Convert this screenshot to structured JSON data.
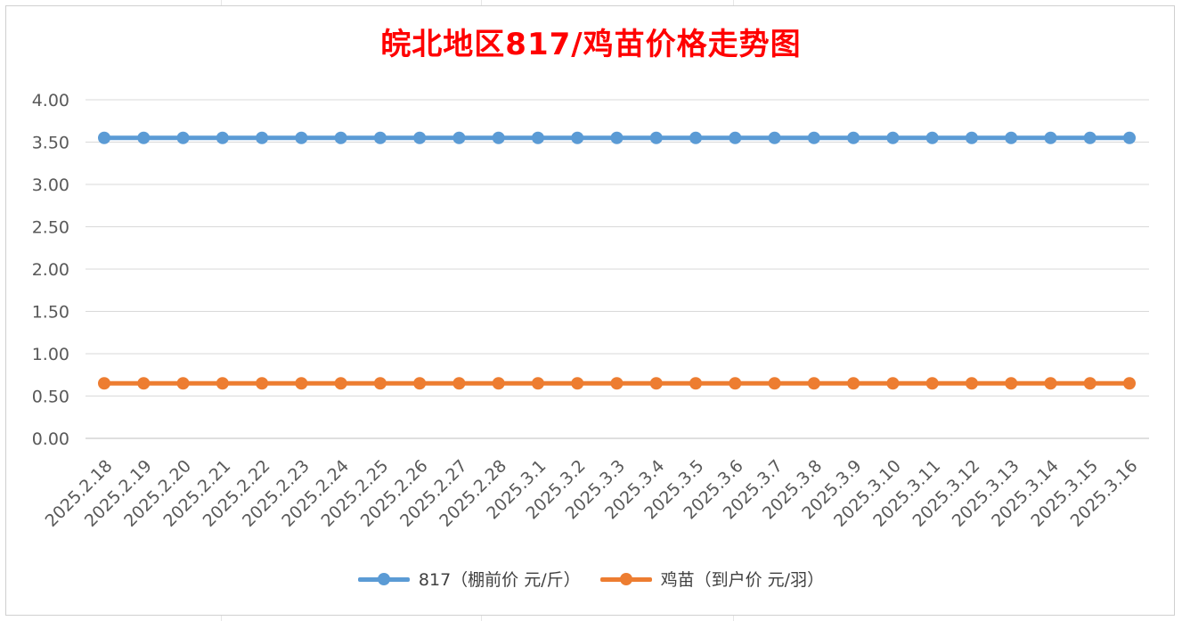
{
  "chart_data": {
    "type": "line",
    "title": "皖北地区817/鸡苗价格走势图",
    "xlabel": "",
    "ylabel": "",
    "categories": [
      "2025.2.18",
      "2025.2.19",
      "2025.2.20",
      "2025.2.21",
      "2025.2.22",
      "2025.2.23",
      "2025.2.24",
      "2025.2.25",
      "2025.2.26",
      "2025.2.27",
      "2025.2.28",
      "2025.3.1",
      "2025.3.2",
      "2025.3.3",
      "2025.3.4",
      "2025.3.5",
      "2025.3.6",
      "2025.3.7",
      "2025.3.8",
      "2025.3.9",
      "2025.3.10",
      "2025.3.11",
      "2025.3.12",
      "2025.3.13",
      "2025.3.14",
      "2025.3.15",
      "2025.3.16"
    ],
    "ylim": [
      0,
      4
    ],
    "yticks": [
      "0.00",
      "0.50",
      "1.00",
      "1.50",
      "2.00",
      "2.50",
      "3.00",
      "3.50",
      "4.00"
    ],
    "ytick_values": [
      0,
      0.5,
      1,
      1.5,
      2,
      2.5,
      3,
      3.5,
      4
    ],
    "grid": true,
    "legend_position": "bottom",
    "series": [
      {
        "name": "817（棚前价 元/斤）",
        "color": "#5b9bd5",
        "values": [
          3.55,
          3.55,
          3.55,
          3.55,
          3.55,
          3.55,
          3.55,
          3.55,
          3.55,
          3.55,
          3.55,
          3.55,
          3.55,
          3.55,
          3.55,
          3.55,
          3.55,
          3.55,
          3.55,
          3.55,
          3.55,
          3.55,
          3.55,
          3.55,
          3.55,
          3.55,
          3.55
        ]
      },
      {
        "name": "鸡苗（到户价 元/羽）",
        "color": "#ed7d31",
        "values": [
          0.65,
          0.65,
          0.65,
          0.65,
          0.65,
          0.65,
          0.65,
          0.65,
          0.65,
          0.65,
          0.65,
          0.65,
          0.65,
          0.65,
          0.65,
          0.65,
          0.65,
          0.65,
          0.65,
          0.65,
          0.65,
          0.65,
          0.65,
          0.65,
          0.65,
          0.65,
          0.65
        ]
      }
    ]
  }
}
